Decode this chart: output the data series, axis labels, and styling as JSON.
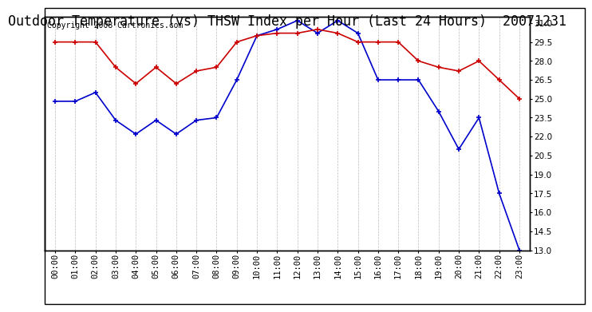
{
  "title": "Outdoor Temperature (vs) THSW Index per Hour (Last 24 Hours)  20071231",
  "copyright": "Copyright 2008 Cartronics.com",
  "hours": [
    "00:00",
    "01:00",
    "02:00",
    "03:00",
    "04:00",
    "05:00",
    "06:00",
    "07:00",
    "08:00",
    "09:00",
    "10:00",
    "11:00",
    "12:00",
    "13:00",
    "14:00",
    "15:00",
    "16:00",
    "17:00",
    "18:00",
    "19:00",
    "20:00",
    "21:00",
    "22:00",
    "23:00"
  ],
  "blue": [
    24.8,
    24.8,
    25.5,
    23.3,
    22.2,
    23.3,
    22.2,
    23.3,
    23.5,
    26.5,
    30.0,
    30.5,
    31.2,
    30.2,
    31.2,
    30.2,
    26.5,
    26.5,
    26.5,
    24.0,
    21.0,
    23.5,
    17.5,
    13.0
  ],
  "red": [
    29.5,
    29.5,
    29.5,
    27.5,
    26.2,
    27.5,
    26.2,
    27.2,
    27.5,
    29.5,
    30.0,
    30.2,
    30.2,
    30.5,
    30.2,
    29.5,
    29.5,
    29.5,
    28.0,
    27.5,
    27.2,
    28.0,
    26.5,
    25.0
  ],
  "blue_color": "#0000cc",
  "red_color": "#cc0000",
  "bg_color": "#ffffff",
  "plot_bg_color": "#ffffff",
  "grid_color": "#aaaaaa",
  "border_color": "#000000",
  "yticks": [
    13.0,
    14.5,
    16.0,
    17.5,
    19.0,
    20.5,
    22.0,
    23.5,
    25.0,
    26.5,
    28.0,
    29.5,
    31.0
  ],
  "ylim": [
    13.0,
    31.5
  ],
  "title_fontsize": 12,
  "copyright_fontsize": 7,
  "tick_fontsize": 7.5
}
